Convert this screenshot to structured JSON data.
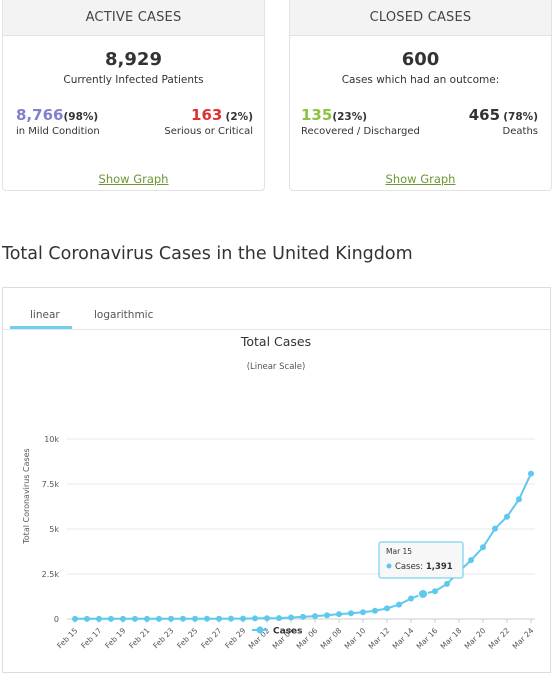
{
  "active": {
    "header": "ACTIVE CASES",
    "total": "8,929",
    "total_label": "Currently Infected Patients",
    "mild": {
      "value": "8,766",
      "pct": "98%",
      "label": "in Mild Condition"
    },
    "serious": {
      "value": "163",
      "pct": "2%",
      "label": "Serious or Critical"
    },
    "link": "Show Graph"
  },
  "closed": {
    "header": "CLOSED CASES",
    "total": "600",
    "total_label": "Cases which had an outcome:",
    "recovered": {
      "value": "135",
      "pct": "23%",
      "label": "Recovered / Discharged"
    },
    "deaths": {
      "value": "465",
      "pct": "78%",
      "label": "Deaths"
    },
    "link": "Show Graph"
  },
  "section_title": "Total Coronavirus Cases in the United Kingdom",
  "tabs": {
    "linear": "linear",
    "logarithmic": "logarithmic"
  },
  "colors": {
    "mild": "#8080cc",
    "serious": "#dd3333",
    "recovered": "#8ac440",
    "line": "#5ec8ee",
    "link": "#6e9631"
  },
  "tooltip": {
    "date": "Mar 15",
    "series": "Cases",
    "value": "1,391"
  },
  "chart_data": {
    "type": "line",
    "title": "Total Cases",
    "subtitle": "(Linear Scale)",
    "ylabel": "Total Coronavirus Cases",
    "ylim": [
      0,
      10000
    ],
    "y_ticks": [
      0,
      2500,
      5000,
      7500,
      10000
    ],
    "y_tick_labels": [
      "0",
      "2.5k",
      "5k",
      "7.5k",
      "10k"
    ],
    "x_tick_labels": [
      "Feb 15",
      "Feb 17",
      "Feb 19",
      "Feb 21",
      "Feb 23",
      "Feb 25",
      "Feb 27",
      "Feb 29",
      "Mar 02",
      "Mar 04",
      "Mar 06",
      "Mar 08",
      "Mar 10",
      "Mar 12",
      "Mar 14",
      "Mar 16",
      "Mar 18",
      "Mar 20",
      "Mar 22",
      "Mar 24"
    ],
    "x": [
      "Feb 15",
      "Feb 16",
      "Feb 17",
      "Feb 18",
      "Feb 19",
      "Feb 20",
      "Feb 21",
      "Feb 22",
      "Feb 23",
      "Feb 24",
      "Feb 25",
      "Feb 26",
      "Feb 27",
      "Feb 28",
      "Feb 29",
      "Mar 01",
      "Mar 02",
      "Mar 03",
      "Mar 04",
      "Mar 05",
      "Mar 06",
      "Mar 07",
      "Mar 08",
      "Mar 09",
      "Mar 10",
      "Mar 11",
      "Mar 12",
      "Mar 13",
      "Mar 14",
      "Mar 15",
      "Mar 16",
      "Mar 17",
      "Mar 18",
      "Mar 19",
      "Mar 20",
      "Mar 21",
      "Mar 22",
      "Mar 23",
      "Mar 24"
    ],
    "series": [
      {
        "name": "Cases",
        "values": [
          9,
          9,
          9,
          9,
          9,
          9,
          9,
          9,
          13,
          13,
          13,
          15,
          15,
          20,
          23,
          36,
          40,
          51,
          85,
          115,
          163,
          206,
          273,
          321,
          373,
          456,
          590,
          798,
          1140,
          1391,
          1543,
          1950,
          2626,
          3269,
          3983,
          5018,
          5683,
          6650,
          8077
        ]
      }
    ],
    "highlight_index": 29,
    "legend": "bottom-center",
    "grid": true
  }
}
